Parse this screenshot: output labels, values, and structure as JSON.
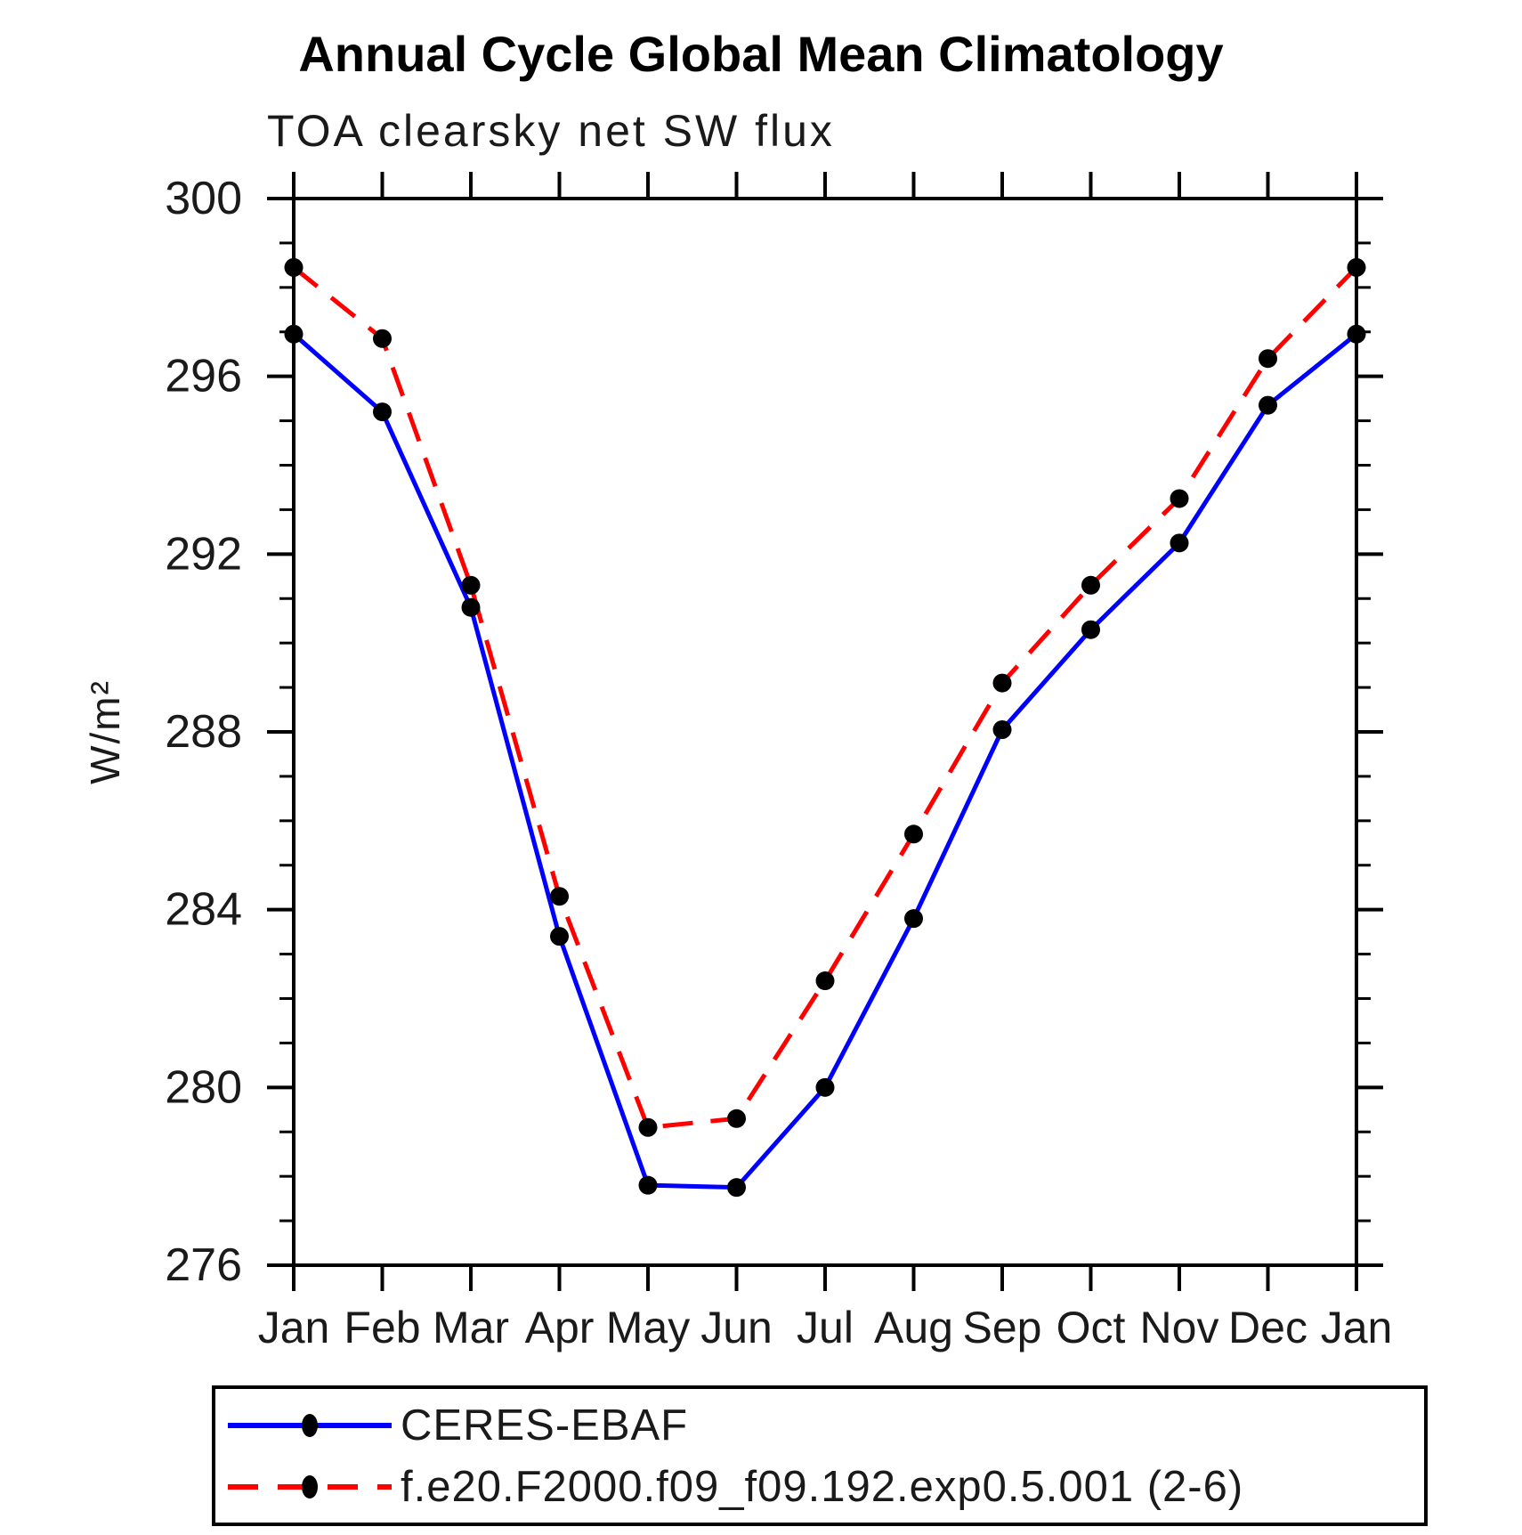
{
  "title": "Annual Cycle Global Mean Climatology",
  "subtitle": "TOA clearsky net SW flux",
  "chart_data": {
    "type": "line",
    "title": "Annual Cycle Global Mean Climatology",
    "subtitle": "TOA clearsky net SW flux",
    "ylabel": "W/m²",
    "xlabel": "",
    "categories": [
      "Jan",
      "Feb",
      "Mar",
      "Apr",
      "May",
      "Jun",
      "Jul",
      "Aug",
      "Sep",
      "Oct",
      "Nov",
      "Dec",
      "Jan"
    ],
    "ylim": [
      276,
      300
    ],
    "ytick_labels": [
      "276",
      "280",
      "284",
      "288",
      "292",
      "296",
      "300"
    ],
    "ytick_step": 4,
    "minor_tick_step": 1,
    "grid": "off",
    "legend_position": "bottom",
    "marker": "filled-circle",
    "marker_color": "#000000",
    "series": [
      {
        "name": "CERES-EBAF",
        "color": "#0000ff",
        "style": "solid",
        "values": [
          296.95,
          295.2,
          290.8,
          283.4,
          277.8,
          277.75,
          280.0,
          283.8,
          288.05,
          290.3,
          292.25,
          295.35,
          296.95
        ]
      },
      {
        "name": "f.e20.F2000.f09_f09.192.exp0.5.001 (2-6)",
        "color": "#ff0000",
        "style": "dashed",
        "values": [
          298.45,
          296.85,
          291.3,
          284.3,
          279.1,
          279.3,
          282.4,
          285.7,
          289.1,
          291.3,
          293.25,
          296.4,
          298.45
        ]
      }
    ]
  }
}
